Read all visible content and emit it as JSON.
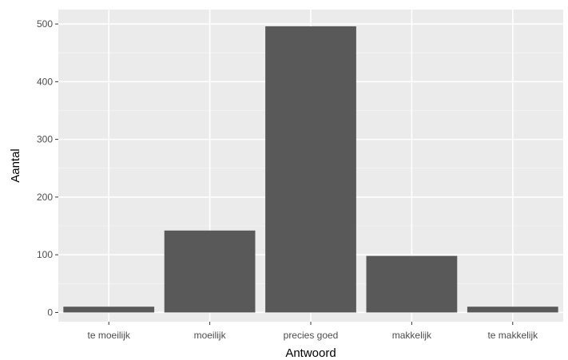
{
  "chart_data": {
    "type": "bar",
    "categories": [
      "te moeilijk",
      "moeilijk",
      "precies goed",
      "makkelijk",
      "te makkelijk"
    ],
    "values": [
      10,
      142,
      496,
      98,
      10
    ],
    "xlabel": "Antwoord",
    "ylabel": "Aantal",
    "ylim": [
      -16,
      525
    ],
    "yticks": [
      0,
      100,
      200,
      300,
      400,
      500
    ],
    "grid": true,
    "legend": "none",
    "colors": {
      "bar": "#595959",
      "panel": "#ebebeb",
      "grid_major": "#ffffff",
      "grid_minor": "#f5f5f5",
      "tick_label": "#4d4d4d",
      "axis_title": "#000000"
    }
  }
}
